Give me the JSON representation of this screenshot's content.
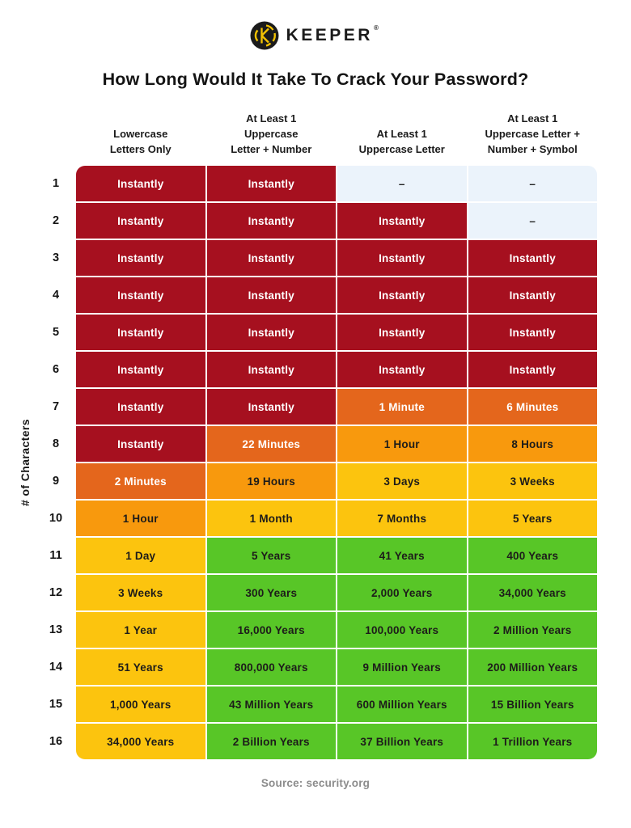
{
  "logo": {
    "brand": "KEEPER",
    "registered_mark": "®",
    "icon": "keeper-circle-k-icon",
    "icon_bg": "#1B1B1B",
    "icon_accent": "#F2C203"
  },
  "title": "How Long Would It Take To Crack Your Password?",
  "source": "Source: security.org",
  "colors": {
    "levels": {
      "darkred": {
        "bg": "#A6101F",
        "fg": "#FFFFFF"
      },
      "darkorange": {
        "bg": "#E4661C",
        "fg": "#FFFFFF"
      },
      "orange": {
        "bg": "#F8990D",
        "fg": "#1D1C1A"
      },
      "yellow": {
        "bg": "#FCC40E",
        "fg": "#1D1C1A"
      },
      "green": {
        "bg": "#58C627",
        "fg": "#1D1C1A"
      },
      "blank": {
        "bg": "#EBF3FB",
        "fg": "#222222"
      }
    }
  },
  "chart_data": {
    "type": "heatmap",
    "title": "How Long Would It Take To Crack Your Password?",
    "row_axis_label": "# of Characters",
    "columns": [
      "Lowercase\nLetters Only",
      "At Least 1\nUppercase\nLetter + Number",
      "At Least 1\nUppercase Letter",
      "At Least 1\nUppercase Letter +\nNumber + Symbol"
    ],
    "rows": [
      {
        "chars": "1",
        "cells": [
          {
            "text": "Instantly",
            "level": "darkred"
          },
          {
            "text": "Instantly",
            "level": "darkred"
          },
          {
            "text": "–",
            "level": "blank"
          },
          {
            "text": "–",
            "level": "blank"
          }
        ]
      },
      {
        "chars": "2",
        "cells": [
          {
            "text": "Instantly",
            "level": "darkred"
          },
          {
            "text": "Instantly",
            "level": "darkred"
          },
          {
            "text": "Instantly",
            "level": "darkred"
          },
          {
            "text": "–",
            "level": "blank"
          }
        ]
      },
      {
        "chars": "3",
        "cells": [
          {
            "text": "Instantly",
            "level": "darkred"
          },
          {
            "text": "Instantly",
            "level": "darkred"
          },
          {
            "text": "Instantly",
            "level": "darkred"
          },
          {
            "text": "Instantly",
            "level": "darkred"
          }
        ]
      },
      {
        "chars": "4",
        "cells": [
          {
            "text": "Instantly",
            "level": "darkred"
          },
          {
            "text": "Instantly",
            "level": "darkred"
          },
          {
            "text": "Instantly",
            "level": "darkred"
          },
          {
            "text": "Instantly",
            "level": "darkred"
          }
        ]
      },
      {
        "chars": "5",
        "cells": [
          {
            "text": "Instantly",
            "level": "darkred"
          },
          {
            "text": "Instantly",
            "level": "darkred"
          },
          {
            "text": "Instantly",
            "level": "darkred"
          },
          {
            "text": "Instantly",
            "level": "darkred"
          }
        ]
      },
      {
        "chars": "6",
        "cells": [
          {
            "text": "Instantly",
            "level": "darkred"
          },
          {
            "text": "Instantly",
            "level": "darkred"
          },
          {
            "text": "Instantly",
            "level": "darkred"
          },
          {
            "text": "Instantly",
            "level": "darkred"
          }
        ]
      },
      {
        "chars": "7",
        "cells": [
          {
            "text": "Instantly",
            "level": "darkred"
          },
          {
            "text": "Instantly",
            "level": "darkred"
          },
          {
            "text": "1 Minute",
            "level": "darkorange"
          },
          {
            "text": "6 Minutes",
            "level": "darkorange"
          }
        ]
      },
      {
        "chars": "8",
        "cells": [
          {
            "text": "Instantly",
            "level": "darkred"
          },
          {
            "text": "22 Minutes",
            "level": "darkorange"
          },
          {
            "text": "1 Hour",
            "level": "orange"
          },
          {
            "text": "8 Hours",
            "level": "orange"
          }
        ]
      },
      {
        "chars": "9",
        "cells": [
          {
            "text": "2 Minutes",
            "level": "darkorange"
          },
          {
            "text": "19 Hours",
            "level": "orange"
          },
          {
            "text": "3 Days",
            "level": "yellow"
          },
          {
            "text": "3 Weeks",
            "level": "yellow"
          }
        ]
      },
      {
        "chars": "10",
        "cells": [
          {
            "text": "1 Hour",
            "level": "orange"
          },
          {
            "text": "1 Month",
            "level": "yellow"
          },
          {
            "text": "7 Months",
            "level": "yellow"
          },
          {
            "text": "5 Years",
            "level": "yellow"
          }
        ]
      },
      {
        "chars": "11",
        "cells": [
          {
            "text": "1 Day",
            "level": "yellow"
          },
          {
            "text": "5 Years",
            "level": "green"
          },
          {
            "text": "41 Years",
            "level": "green"
          },
          {
            "text": "400 Years",
            "level": "green"
          }
        ]
      },
      {
        "chars": "12",
        "cells": [
          {
            "text": "3 Weeks",
            "level": "yellow"
          },
          {
            "text": "300 Years",
            "level": "green"
          },
          {
            "text": "2,000 Years",
            "level": "green"
          },
          {
            "text": "34,000 Years",
            "level": "green"
          }
        ]
      },
      {
        "chars": "13",
        "cells": [
          {
            "text": "1 Year",
            "level": "yellow"
          },
          {
            "text": "16,000 Years",
            "level": "green"
          },
          {
            "text": "100,000 Years",
            "level": "green"
          },
          {
            "text": "2 Million Years",
            "level": "green"
          }
        ]
      },
      {
        "chars": "14",
        "cells": [
          {
            "text": "51 Years",
            "level": "yellow"
          },
          {
            "text": "800,000 Years",
            "level": "green"
          },
          {
            "text": "9 Million Years",
            "level": "green"
          },
          {
            "text": "200 Million Years",
            "level": "green"
          }
        ]
      },
      {
        "chars": "15",
        "cells": [
          {
            "text": "1,000 Years",
            "level": "yellow"
          },
          {
            "text": "43 Million Years",
            "level": "green"
          },
          {
            "text": "600 Million Years",
            "level": "green"
          },
          {
            "text": "15 Billion Years",
            "level": "green"
          }
        ]
      },
      {
        "chars": "16",
        "cells": [
          {
            "text": "34,000 Years",
            "level": "yellow"
          },
          {
            "text": "2 Billion Years",
            "level": "green"
          },
          {
            "text": "37 Billion Years",
            "level": "green"
          },
          {
            "text": "1 Trillion Years",
            "level": "green"
          }
        ]
      }
    ]
  }
}
